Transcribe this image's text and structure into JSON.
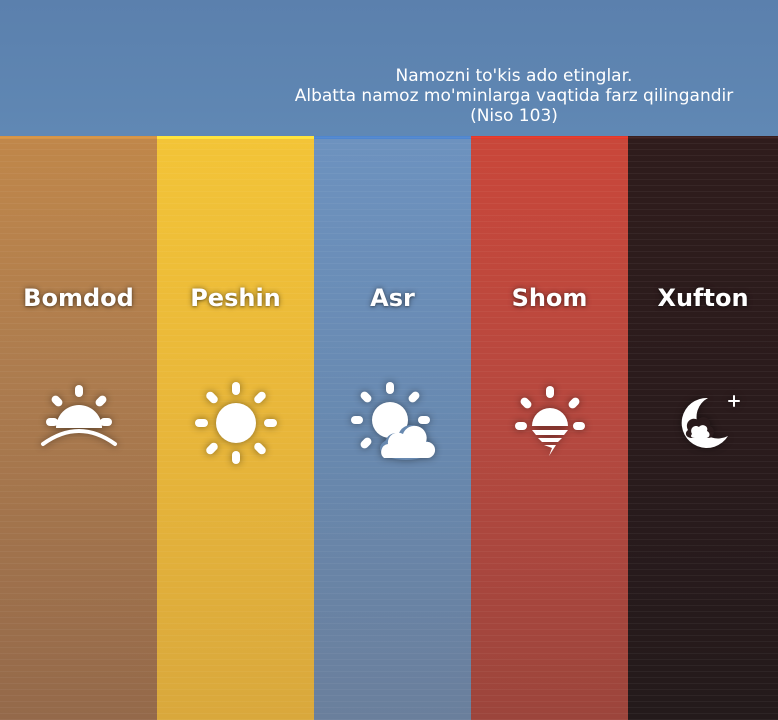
{
  "verse": {
    "line1": "Namozni to'kis ado etinglar.",
    "line2": "Albatta namoz mo'minlarga vaqtida farz qilingandir",
    "line3": "(Niso 103)"
  },
  "prayers": [
    {
      "name": "Bomdod",
      "icon": "sunrise-icon",
      "color": "#ad7c4e"
    },
    {
      "name": "Peshin",
      "icon": "sun-icon",
      "color": "#e8b63a"
    },
    {
      "name": "Asr",
      "icon": "sun-cloud-icon",
      "color": "#6889b0"
    },
    {
      "name": "Shom",
      "icon": "sunset-icon",
      "color": "#b5483f"
    },
    {
      "name": "Xufton",
      "icon": "moon-icon",
      "color": "#2a1b1c"
    }
  ]
}
